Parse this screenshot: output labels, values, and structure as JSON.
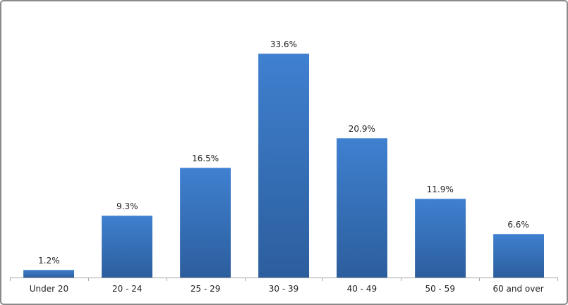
{
  "chart_data": {
    "type": "bar",
    "title": "",
    "xlabel": "",
    "ylabel": "",
    "categories": [
      "Under 20",
      "20 - 24",
      "25 - 29",
      "30 - 39",
      "40 - 49",
      "50 - 59",
      "60 and over"
    ],
    "values": [
      1.2,
      9.3,
      16.5,
      33.6,
      20.9,
      11.9,
      6.6
    ],
    "data_labels": [
      "1.2%",
      "9.3%",
      "16.5%",
      "33.6%",
      "20.9%",
      "11.9%",
      "6.6%"
    ],
    "ylim": [
      0,
      37
    ],
    "grid": false,
    "legend": "none",
    "y_axis_visible": false,
    "colors": {
      "bar_gradient_top": "#3f80d0",
      "bar_gradient_bottom": "#2c5e9d",
      "axis_line": "#a6a6a6",
      "label_text": "#1f1f1f",
      "chart_border": "#8a8a8a",
      "background": "#ffffff"
    }
  }
}
